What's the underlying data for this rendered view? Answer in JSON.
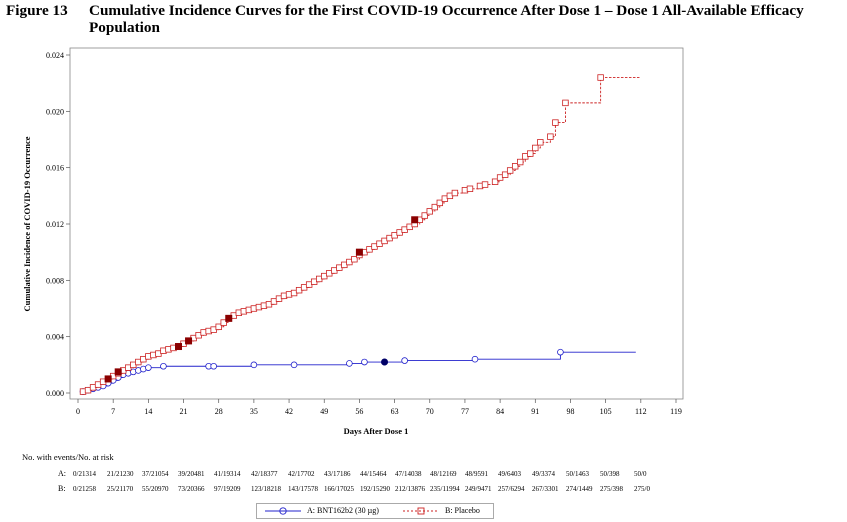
{
  "figure": {
    "number": "Figure 13",
    "title_line1": "Cumulative Incidence Curves for the First COVID-19 Occurrence After Dose 1 – Dose 1 All-Available Efficacy",
    "title_line2": "Population"
  },
  "chart_data": {
    "type": "line",
    "xlabel": "Days After Dose 1",
    "ylabel": "Cumulative Incidence of COVID-19 Occurrence",
    "xlim": [
      0,
      119
    ],
    "ylim": [
      0,
      0.024
    ],
    "x_ticks": [
      0,
      7,
      14,
      21,
      28,
      35,
      42,
      49,
      56,
      63,
      70,
      77,
      84,
      91,
      98,
      105,
      112,
      119
    ],
    "y_ticks": [
      0.0,
      0.004,
      0.008,
      0.012,
      0.016,
      0.02,
      0.024
    ],
    "y_tick_labels": [
      "0.000",
      "0.004",
      "0.008",
      "0.012",
      "0.016",
      "0.020",
      "0.024"
    ],
    "grid": false,
    "legend_position": "bottom",
    "series": [
      {
        "name": "A: BNT162b2 (30 µg)",
        "color": "#2222cc",
        "marker": "circle",
        "step": true,
        "points": [
          [
            1,
            0.0001
          ],
          [
            2,
            0.0002
          ],
          [
            3,
            0.0003
          ],
          [
            4,
            0.0004
          ],
          [
            5,
            0.0005
          ],
          [
            6,
            0.0007
          ],
          [
            7,
            0.0009
          ],
          [
            8,
            0.0011
          ],
          [
            9,
            0.0013
          ],
          [
            10,
            0.0014
          ],
          [
            11,
            0.0015
          ],
          [
            12,
            0.0016
          ],
          [
            13,
            0.0017
          ],
          [
            14,
            0.0018
          ],
          [
            17,
            0.0019
          ],
          [
            26,
            0.0019
          ],
          [
            27,
            0.0019
          ],
          [
            35,
            0.002
          ],
          [
            43,
            0.002
          ],
          [
            54,
            0.0021
          ],
          [
            57,
            0.0022
          ],
          [
            61,
            0.0022
          ],
          [
            65,
            0.0023
          ],
          [
            79,
            0.0024
          ],
          [
            96,
            0.0029
          ],
          [
            111,
            0.0029
          ]
        ],
        "highlight": [
          [
            61,
            0.0022
          ]
        ]
      },
      {
        "name": "B: Placebo",
        "color": "#cc2222",
        "marker": "square",
        "step": true,
        "points": [
          [
            1,
            0.0001
          ],
          [
            2,
            0.0002
          ],
          [
            3,
            0.0004
          ],
          [
            4,
            0.0006
          ],
          [
            5,
            0.0008
          ],
          [
            6,
            0.001
          ],
          [
            7,
            0.0012
          ],
          [
            8,
            0.0014
          ],
          [
            9,
            0.0016
          ],
          [
            10,
            0.0018
          ],
          [
            11,
            0.002
          ],
          [
            12,
            0.0022
          ],
          [
            13,
            0.0024
          ],
          [
            14,
            0.0026
          ],
          [
            15,
            0.0027
          ],
          [
            16,
            0.0028
          ],
          [
            17,
            0.003
          ],
          [
            18,
            0.0031
          ],
          [
            19,
            0.0032
          ],
          [
            20,
            0.0033
          ],
          [
            21,
            0.0035
          ],
          [
            22,
            0.0037
          ],
          [
            23,
            0.0039
          ],
          [
            24,
            0.0041
          ],
          [
            25,
            0.0043
          ],
          [
            26,
            0.0044
          ],
          [
            27,
            0.0045
          ],
          [
            28,
            0.0047
          ],
          [
            29,
            0.005
          ],
          [
            30,
            0.0053
          ],
          [
            31,
            0.0055
          ],
          [
            32,
            0.0057
          ],
          [
            33,
            0.0058
          ],
          [
            34,
            0.0059
          ],
          [
            35,
            0.006
          ],
          [
            36,
            0.0061
          ],
          [
            37,
            0.0062
          ],
          [
            38,
            0.0063
          ],
          [
            39,
            0.0065
          ],
          [
            40,
            0.0067
          ],
          [
            41,
            0.0069
          ],
          [
            42,
            0.007
          ],
          [
            43,
            0.0071
          ],
          [
            44,
            0.0073
          ],
          [
            45,
            0.0075
          ],
          [
            46,
            0.0077
          ],
          [
            47,
            0.0079
          ],
          [
            48,
            0.0081
          ],
          [
            49,
            0.0083
          ],
          [
            50,
            0.0085
          ],
          [
            51,
            0.0087
          ],
          [
            52,
            0.0089
          ],
          [
            53,
            0.0091
          ],
          [
            54,
            0.0093
          ],
          [
            55,
            0.0095
          ],
          [
            56,
            0.0098
          ],
          [
            57,
            0.01
          ],
          [
            58,
            0.0102
          ],
          [
            59,
            0.0104
          ],
          [
            60,
            0.0106
          ],
          [
            61,
            0.0108
          ],
          [
            62,
            0.011
          ],
          [
            63,
            0.0112
          ],
          [
            64,
            0.0114
          ],
          [
            65,
            0.0116
          ],
          [
            66,
            0.0118
          ],
          [
            67,
            0.012
          ],
          [
            68,
            0.0123
          ],
          [
            69,
            0.0126
          ],
          [
            70,
            0.0129
          ],
          [
            71,
            0.0132
          ],
          [
            72,
            0.0135
          ],
          [
            73,
            0.0138
          ],
          [
            74,
            0.014
          ],
          [
            75,
            0.0142
          ],
          [
            77,
            0.0144
          ],
          [
            78,
            0.0145
          ],
          [
            80,
            0.0147
          ],
          [
            81,
            0.0148
          ],
          [
            83,
            0.015
          ],
          [
            84,
            0.0153
          ],
          [
            85,
            0.0155
          ],
          [
            86,
            0.0158
          ],
          [
            87,
            0.0161
          ],
          [
            88,
            0.0164
          ],
          [
            89,
            0.0168
          ],
          [
            90,
            0.017
          ],
          [
            91,
            0.0174
          ],
          [
            92,
            0.0178
          ],
          [
            94,
            0.0182
          ],
          [
            95,
            0.0192
          ],
          [
            97,
            0.0206
          ],
          [
            104,
            0.0224
          ],
          [
            112,
            0.0224
          ]
        ],
        "highlight": [
          [
            6,
            0.001
          ],
          [
            8,
            0.0015
          ],
          [
            20,
            0.0033
          ],
          [
            22,
            0.0037
          ],
          [
            30,
            0.0053
          ],
          [
            56,
            0.01
          ],
          [
            67,
            0.0123
          ]
        ]
      }
    ]
  },
  "risk_table": {
    "header": "No. with events/No. at risk",
    "rows": [
      {
        "label": "A:",
        "values": [
          "0/21314",
          "21/21230",
          "37/21054",
          "39/20481",
          "41/19314",
          "42/18377",
          "42/17702",
          "43/17186",
          "44/15464",
          "47/14038",
          "48/12169",
          "48/9591",
          "49/6403",
          "49/3374",
          "50/1463",
          "50/398",
          "50/0"
        ]
      },
      {
        "label": "B:",
        "values": [
          "0/21258",
          "25/21170",
          "55/20970",
          "73/20366",
          "97/19209",
          "123/18218",
          "143/17578",
          "166/17025",
          "192/15290",
          "212/13876",
          "235/11994",
          "249/9471",
          "257/6294",
          "267/3301",
          "274/1449",
          "275/398",
          "275/0"
        ]
      }
    ]
  },
  "legend": {
    "a_label": "A: BNT162b2 (30 µg)",
    "b_label": "B: Placebo"
  }
}
